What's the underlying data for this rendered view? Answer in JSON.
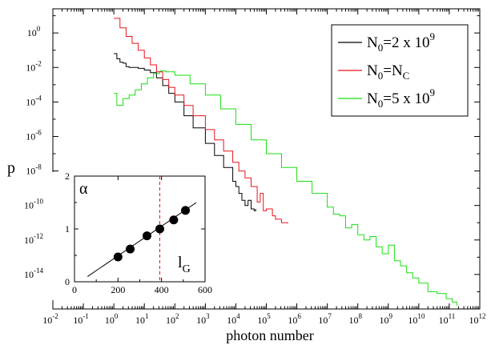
{
  "chart_data": [
    {
      "type": "line",
      "xlabel": "photon number",
      "ylabel": "p",
      "xscale": "log",
      "yscale": "log",
      "xlim_exp": [
        -2,
        12
      ],
      "ylim_exp": [
        -16,
        1.4
      ],
      "x_tick_exponents": [
        -2,
        -1,
        0,
        1,
        2,
        3,
        4,
        5,
        6,
        7,
        8,
        9,
        10,
        11,
        12
      ],
      "y_tick_exponents": [
        0,
        -2,
        -4,
        -6,
        -8,
        -10,
        -12,
        -14
      ],
      "tick_base": "10",
      "legend_position": "top-right",
      "legend": [
        {
          "base": "N",
          "sub": "0",
          "text": "=2 x 10",
          "sup": "9",
          "color": "#000000"
        },
        {
          "base": "N",
          "sub": "0",
          "text": "=N",
          "sub2": "C",
          "color": "#e8141c"
        },
        {
          "base": "N",
          "sub": "0",
          "text": "=5 x 10",
          "sup": "9",
          "color": "#1adf12"
        }
      ],
      "series": [
        {
          "color": "#000000",
          "log_points": [
            [
              0,
              -1.2
            ],
            [
              0.1,
              -1.5
            ],
            [
              0.2,
              -1.7
            ],
            [
              0.3,
              -1.75
            ],
            [
              0.4,
              -1.95
            ],
            [
              0.5,
              -2.0
            ],
            [
              0.6,
              -2.0
            ],
            [
              0.7,
              -2.0
            ],
            [
              0.8,
              -2.05
            ],
            [
              1.0,
              -2.15
            ],
            [
              1.2,
              -2.3
            ],
            [
              1.4,
              -2.6
            ],
            [
              1.6,
              -3.05
            ],
            [
              1.8,
              -3.5
            ],
            [
              2.0,
              -4.0
            ],
            [
              2.3,
              -4.8
            ],
            [
              2.6,
              -5.5
            ],
            [
              3.0,
              -6.4
            ],
            [
              3.3,
              -7.1
            ],
            [
              3.6,
              -7.8
            ],
            [
              3.9,
              -8.6
            ],
            [
              4.0,
              -8.9
            ],
            [
              4.1,
              -9.3
            ],
            [
              4.2,
              -9.7
            ],
            [
              4.3,
              -10.0
            ],
            [
              4.4,
              -9.7
            ],
            [
              4.5,
              -10.2
            ],
            [
              4.6,
              -10.3
            ],
            [
              4.65,
              -10.2
            ]
          ]
        },
        {
          "color": "#e8141c",
          "log_points": [
            [
              0,
              0.85
            ],
            [
              0.2,
              0.3
            ],
            [
              0.4,
              -0.2
            ],
            [
              0.6,
              -0.6
            ],
            [
              0.8,
              -1.0
            ],
            [
              1.0,
              -1.45
            ],
            [
              1.2,
              -1.85
            ],
            [
              1.4,
              -2.25
            ],
            [
              1.6,
              -2.7
            ],
            [
              1.8,
              -3.15
            ],
            [
              2.0,
              -3.6
            ],
            [
              2.3,
              -4.2
            ],
            [
              2.6,
              -4.8
            ],
            [
              3.0,
              -5.6
            ],
            [
              3.3,
              -6.2
            ],
            [
              3.6,
              -6.85
            ],
            [
              3.9,
              -7.5
            ],
            [
              4.1,
              -8.0
            ],
            [
              4.3,
              -8.4
            ],
            [
              4.5,
              -8.9
            ],
            [
              4.7,
              -9.8
            ],
            [
              4.8,
              -9.3
            ],
            [
              4.9,
              -10.3
            ],
            [
              5.0,
              -10.2
            ],
            [
              5.2,
              -10.6
            ],
            [
              5.3,
              -10.8
            ],
            [
              5.5,
              -11.0
            ],
            [
              5.7,
              -11.05
            ]
          ]
        },
        {
          "color": "#1adf12",
          "log_points": [
            [
              0,
              -3.5
            ],
            [
              0.1,
              -4.2
            ],
            [
              0.3,
              -3.8
            ],
            [
              0.5,
              -3.6
            ],
            [
              0.7,
              -3.3
            ],
            [
              0.9,
              -2.95
            ],
            [
              1.1,
              -2.6
            ],
            [
              1.3,
              -2.35
            ],
            [
              1.5,
              -2.2
            ],
            [
              1.7,
              -2.25
            ],
            [
              2.0,
              -2.45
            ],
            [
              2.5,
              -2.95
            ],
            [
              3.0,
              -3.6
            ],
            [
              3.5,
              -4.4
            ],
            [
              4.0,
              -5.3
            ],
            [
              4.5,
              -6.2
            ],
            [
              5.0,
              -7.0
            ],
            [
              5.5,
              -7.8
            ],
            [
              6.0,
              -8.6
            ],
            [
              6.5,
              -9.3
            ],
            [
              7.0,
              -10.1
            ],
            [
              7.2,
              -10.5
            ],
            [
              7.4,
              -10.6
            ],
            [
              7.6,
              -11.3
            ],
            [
              7.8,
              -11.1
            ],
            [
              8.0,
              -11.7
            ],
            [
              8.2,
              -12.0
            ],
            [
              8.4,
              -11.8
            ],
            [
              8.6,
              -12.4
            ],
            [
              8.8,
              -12.8
            ],
            [
              9.0,
              -12.3
            ],
            [
              9.2,
              -13.2
            ],
            [
              9.4,
              -13.5
            ],
            [
              9.6,
              -13.9
            ],
            [
              9.8,
              -14.2
            ],
            [
              10.0,
              -14.5
            ],
            [
              10.3,
              -15.0
            ],
            [
              10.6,
              -15.1
            ],
            [
              10.9,
              -15.4
            ],
            [
              11.1,
              -15.6
            ],
            [
              11.25,
              -15.8
            ]
          ]
        }
      ]
    },
    {
      "type": "scatter",
      "inset": true,
      "ylabel": "α",
      "xlabel": "l",
      "xlabel_sub": "G",
      "xlim": [
        0,
        600
      ],
      "ylim": [
        0,
        2
      ],
      "x_ticks": [
        "0",
        "200",
        "400",
        "600"
      ],
      "y_ticks": [
        "0",
        "1",
        "2"
      ],
      "points": [
        [
          200,
          0.47
        ],
        [
          256,
          0.62
        ],
        [
          333,
          0.87
        ],
        [
          392,
          1.0
        ],
        [
          456,
          1.17
        ],
        [
          510,
          1.35
        ]
      ],
      "fit_line": [
        [
          60,
          0.1
        ],
        [
          560,
          1.5
        ]
      ],
      "vline_x": 392,
      "vline_color": "#e8141c"
    }
  ]
}
